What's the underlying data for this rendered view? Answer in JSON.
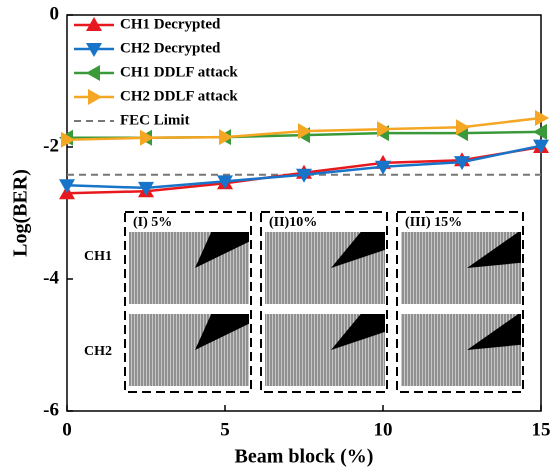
{
  "chart_data": {
    "type": "line",
    "xlabel": "Beam block (%)",
    "ylabel": "Log(BER)",
    "x": [
      0,
      2.5,
      5,
      7.5,
      10,
      12.5,
      15
    ],
    "series": [
      {
        "name": "CH1 Decrypted",
        "color": "#e8191e",
        "marker": "up",
        "values": [
          -2.7,
          -2.67,
          -2.55,
          -2.39,
          -2.24,
          -2.2,
          -2.0
        ]
      },
      {
        "name": "CH2 Decrypted",
        "color": "#1874c8",
        "marker": "down",
        "values": [
          -2.58,
          -2.62,
          -2.52,
          -2.42,
          -2.3,
          -2.23,
          -1.98
        ]
      },
      {
        "name": "CH1 DDLF attack",
        "color": "#3a9a3a",
        "marker": "left",
        "values": [
          -1.86,
          -1.86,
          -1.85,
          -1.82,
          -1.79,
          -1.79,
          -1.77
        ]
      },
      {
        "name": "CH2 DDLF attack",
        "color": "#f5a623",
        "marker": "right",
        "values": [
          -1.89,
          -1.86,
          -1.85,
          -1.76,
          -1.73,
          -1.7,
          -1.56
        ]
      }
    ],
    "reference_line": {
      "name": "FEC Limit",
      "value": -2.42,
      "color": "#777777"
    },
    "xlim": [
      0,
      15
    ],
    "xticks": [
      0,
      5,
      10,
      15
    ],
    "ylim": [
      -6,
      0
    ],
    "yticks": [
      0,
      -2,
      -4,
      -6
    ],
    "inset": {
      "panels": [
        "(I) 5%",
        "(II)10%",
        "(III) 15%"
      ],
      "rows": [
        "CH1",
        "CH2"
      ]
    }
  }
}
